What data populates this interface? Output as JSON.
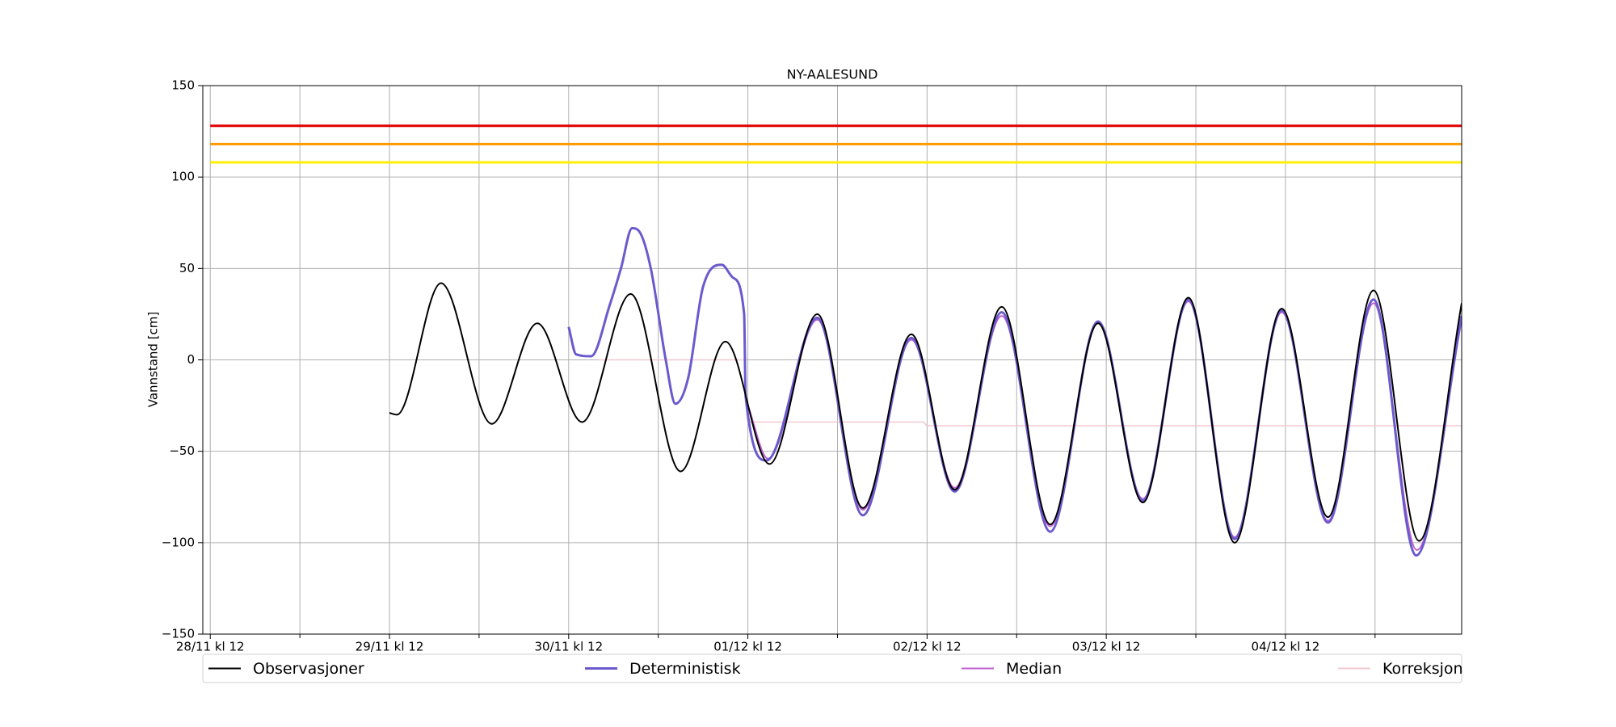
{
  "chart_data": {
    "type": "line",
    "title": "NY-AALESUND",
    "y_label": "Vannstand [cm]",
    "xlim": [
      -1,
      167.6
    ],
    "ylim": [
      -150,
      150
    ],
    "xticks": [
      {
        "value": 0,
        "label": "28/11 kl 12"
      },
      {
        "value": 24,
        "label": "29/11 kl 12"
      },
      {
        "value": 48,
        "label": "30/11 kl 12"
      },
      {
        "value": 72,
        "label": "01/12 kl 12"
      },
      {
        "value": 96,
        "label": "02/12 kl 12"
      },
      {
        "value": 120,
        "label": "03/12 kl 12"
      },
      {
        "value": 144,
        "label": "04/12 kl 12"
      }
    ],
    "xticks_minor": [
      12,
      36,
      60,
      84,
      108,
      132,
      156
    ],
    "yticks": [
      {
        "value": -150,
        "label": "−150"
      },
      {
        "value": -100,
        "label": "−100"
      },
      {
        "value": -50,
        "label": "−50"
      },
      0,
      50,
      100,
      150
    ],
    "grid": true,
    "hlines": [
      {
        "value": 128,
        "color": "#e00000",
        "start": 0
      },
      {
        "value": 118,
        "color": "#ff9900",
        "start": 0
      },
      {
        "value": 108,
        "color": "#ffee00",
        "start": 0
      }
    ],
    "legend": "bottom",
    "series": [
      {
        "name": "Observasjoner",
        "color": "#000000",
        "width": 2,
        "x": [
          24,
          25,
          30.9,
          37.7,
          43.8,
          49.8,
          56.3,
          63,
          69,
          74.9,
          81.3,
          87.4,
          93.9,
          99.7,
          106,
          112.5,
          118.9,
          124.9,
          131,
          137.2,
          143.5,
          149.7,
          155.8,
          161.9,
          167.6
        ],
        "values": [
          -29,
          -30,
          42,
          -35,
          20,
          -34,
          36,
          -61,
          10,
          -57,
          25,
          -81,
          14,
          -71,
          29,
          -90,
          20,
          -78,
          34,
          -100,
          28,
          -86,
          38,
          -99,
          31
        ]
      },
      {
        "name": "Deterministisk",
        "color": "#6a5acd",
        "width": 3,
        "x": [
          48,
          49,
          51,
          53.5,
          55,
          56.5,
          57.5,
          59,
          61,
          62.3,
          64,
          66,
          68.5,
          70,
          71.5,
          71.7,
          74.5,
          81.3,
          87.4,
          93.9,
          99.7,
          106,
          112.5,
          118.9,
          124.9,
          131,
          137.2,
          143.5,
          149.7,
          155.8,
          161.5,
          167.6
        ],
        "values": [
          18,
          3,
          2,
          30,
          50,
          72,
          70,
          50,
          0,
          -24,
          -10,
          40,
          52,
          45,
          25,
          -20,
          -55,
          23,
          -85,
          12,
          -72,
          26,
          -94,
          21,
          -77,
          33,
          -98,
          27,
          -89,
          33,
          -107,
          24
        ]
      },
      {
        "name": "Median",
        "color": "#c060d0",
        "width": 2,
        "x": [
          72,
          74.7,
          81.3,
          87.4,
          93.9,
          99.7,
          106,
          112.5,
          118.9,
          124.9,
          131,
          137.2,
          143.5,
          149.7,
          155.8,
          161.6,
          167.6
        ],
        "values": [
          -25,
          -54,
          22,
          -82,
          11,
          -70,
          24,
          -91,
          20,
          -76,
          32,
          -97,
          26,
          -88,
          31,
          -104,
          22
        ]
      },
      {
        "name": "Korreksjon",
        "color": "#f0c8d0",
        "width": 1.5,
        "x": [
          52,
          71.5,
          72,
          95.5,
          96,
          167.6
        ],
        "values": [
          0,
          0,
          -34,
          -34,
          -36,
          -36
        ]
      }
    ]
  }
}
